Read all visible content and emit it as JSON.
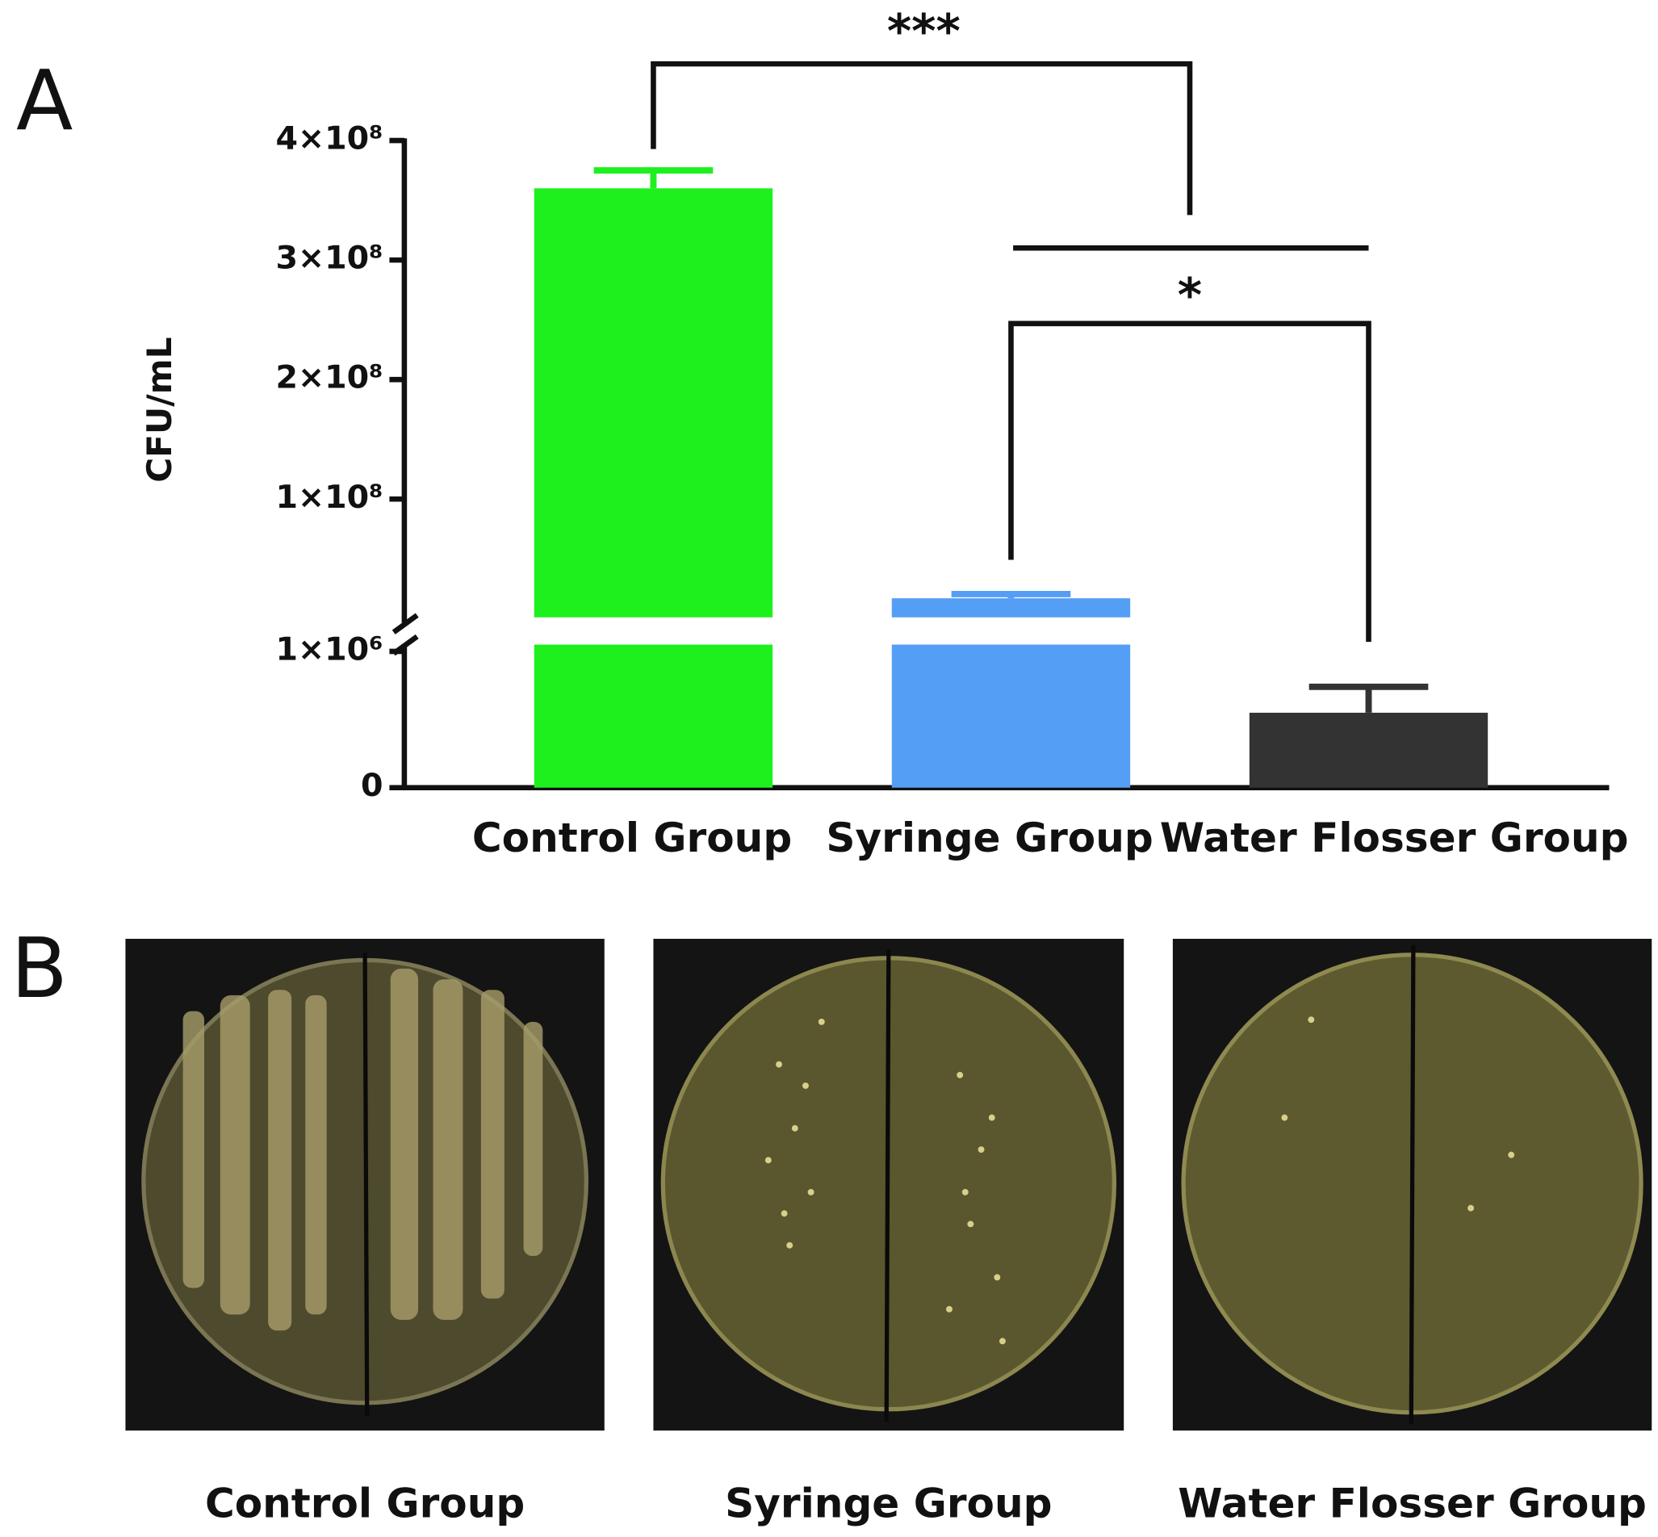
{
  "chart_data": {
    "type": "bar",
    "panel_label": "A",
    "ylabel": "CFU/mL",
    "categories": [
      "Control Group",
      "Syringe Group",
      "Water Flosser Group"
    ],
    "values": [
      360000000,
      17000000,
      550000
    ],
    "errors": [
      15000000,
      3500000,
      190000
    ],
    "colors": [
      "#1ef01e",
      "#559ef5",
      "#333333"
    ],
    "segments": [
      {
        "ylim": [
          0,
          1050000
        ],
        "yticks": [
          0,
          {
            "value": 1000000,
            "label": "1×10⁶"
          }
        ]
      },
      {
        "ylim": [
          1050000,
          400000000
        ],
        "yticks": [
          {
            "value": 100000000,
            "label": "1×10⁸"
          },
          {
            "value": 200000000,
            "label": "2×10⁸"
          },
          {
            "value": 300000000,
            "label": "3×10⁸"
          },
          {
            "value": 400000000,
            "label": "4×10⁸"
          }
        ]
      }
    ],
    "annotations": [
      {
        "text": "***"
      },
      {
        "text": "*"
      }
    ]
  },
  "panel_b": {
    "label": "B",
    "images": [
      {
        "label": "Control Group"
      },
      {
        "label": "Syringe Group"
      },
      {
        "label": "Water Flosser Group"
      }
    ]
  }
}
